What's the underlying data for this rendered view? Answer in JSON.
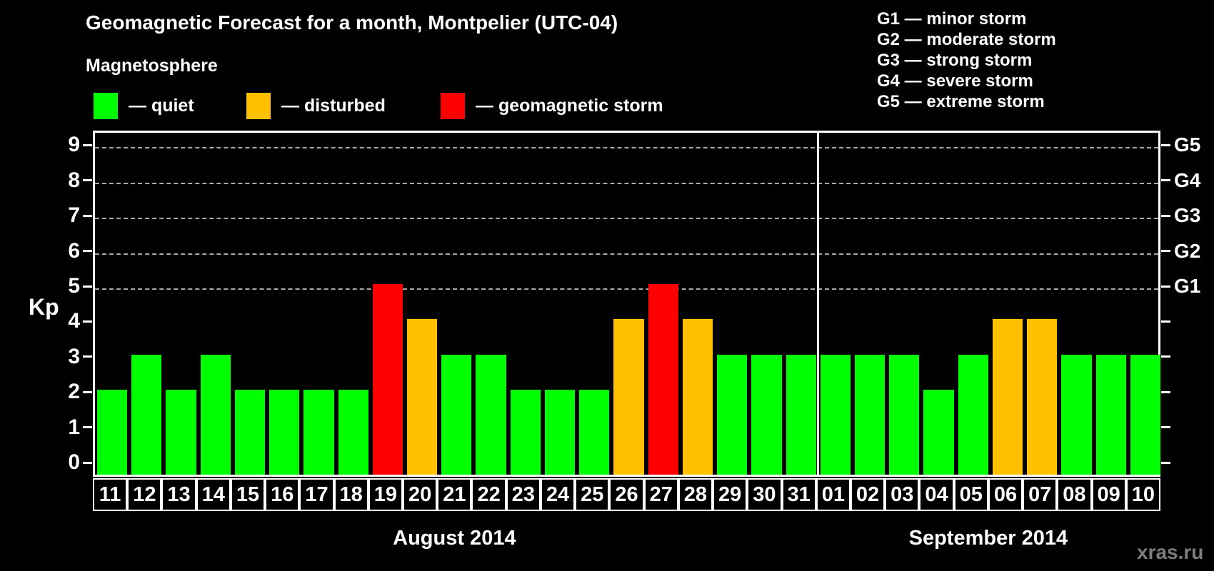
{
  "title": "Geomagnetic Forecast for a month, Montpelier (UTC-04)",
  "subtitle": "Magnetosphere",
  "legend": {
    "items": [
      {
        "key": "quiet",
        "label": "— quiet",
        "color": "#00ff00"
      },
      {
        "key": "disturbed",
        "label": "— disturbed",
        "color": "#ffc000"
      },
      {
        "key": "storm",
        "label": "— geomagnetic storm",
        "color": "#ff0000"
      }
    ]
  },
  "g_scale_legend": [
    "G1 — minor storm",
    "G2 — moderate storm",
    "G3 — strong storm",
    "G4 — severe storm",
    "G5 — extreme storm"
  ],
  "watermark": "xras.ru",
  "chart_data": {
    "type": "bar",
    "title": "Geomagnetic Forecast for a month, Montpelier (UTC-04)",
    "ylabel": "Kp",
    "ylim": [
      0,
      9
    ],
    "yticks": [
      0,
      1,
      2,
      3,
      4,
      5,
      6,
      7,
      8,
      9
    ],
    "gridlines_at": [
      5,
      6,
      7,
      8,
      9
    ],
    "grid": "dashed",
    "right_axis_labels": [
      {
        "value": 5,
        "label": "G1"
      },
      {
        "value": 6,
        "label": "G2"
      },
      {
        "value": 7,
        "label": "G3"
      },
      {
        "value": 8,
        "label": "G4"
      },
      {
        "value": 9,
        "label": "G5"
      }
    ],
    "colors": {
      "quiet": "#00ff00",
      "disturbed": "#ffc000",
      "storm": "#ff0000"
    },
    "months": [
      {
        "label": "August 2014",
        "days": [
          {
            "date": "11",
            "kp": 2,
            "status": "quiet"
          },
          {
            "date": "12",
            "kp": 3,
            "status": "quiet"
          },
          {
            "date": "13",
            "kp": 2,
            "status": "quiet"
          },
          {
            "date": "14",
            "kp": 3,
            "status": "quiet"
          },
          {
            "date": "15",
            "kp": 2,
            "status": "quiet"
          },
          {
            "date": "16",
            "kp": 2,
            "status": "quiet"
          },
          {
            "date": "17",
            "kp": 2,
            "status": "quiet"
          },
          {
            "date": "18",
            "kp": 2,
            "status": "quiet"
          },
          {
            "date": "19",
            "kp": 5,
            "status": "storm"
          },
          {
            "date": "20",
            "kp": 4,
            "status": "disturbed"
          },
          {
            "date": "21",
            "kp": 3,
            "status": "quiet"
          },
          {
            "date": "22",
            "kp": 3,
            "status": "quiet"
          },
          {
            "date": "23",
            "kp": 2,
            "status": "quiet"
          },
          {
            "date": "24",
            "kp": 2,
            "status": "quiet"
          },
          {
            "date": "25",
            "kp": 2,
            "status": "quiet"
          },
          {
            "date": "26",
            "kp": 4,
            "status": "disturbed"
          },
          {
            "date": "27",
            "kp": 5,
            "status": "storm"
          },
          {
            "date": "28",
            "kp": 4,
            "status": "disturbed"
          },
          {
            "date": "29",
            "kp": 3,
            "status": "quiet"
          },
          {
            "date": "30",
            "kp": 3,
            "status": "quiet"
          },
          {
            "date": "31",
            "kp": 3,
            "status": "quiet"
          }
        ]
      },
      {
        "label": "September 2014",
        "days": [
          {
            "date": "01",
            "kp": 3,
            "status": "quiet"
          },
          {
            "date": "02",
            "kp": 3,
            "status": "quiet"
          },
          {
            "date": "03",
            "kp": 3,
            "status": "quiet"
          },
          {
            "date": "04",
            "kp": 2,
            "status": "quiet"
          },
          {
            "date": "05",
            "kp": 3,
            "status": "quiet"
          },
          {
            "date": "06",
            "kp": 4,
            "status": "disturbed"
          },
          {
            "date": "07",
            "kp": 4,
            "status": "disturbed"
          },
          {
            "date": "08",
            "kp": 3,
            "status": "quiet"
          },
          {
            "date": "09",
            "kp": 3,
            "status": "quiet"
          },
          {
            "date": "10",
            "kp": 3,
            "status": "quiet"
          }
        ]
      }
    ]
  }
}
